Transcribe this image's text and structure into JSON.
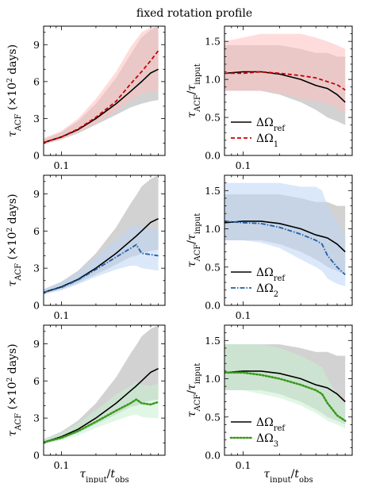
{
  "title": "fixed rotation profile",
  "xlabel_html": "τ_input / t_obs",
  "chart_data": [
    {
      "type": "line",
      "panel": "acf-1",
      "xscale": "log",
      "xlim": [
        0.07,
        0.8
      ],
      "ylim": [
        0,
        10.5
      ],
      "yticks": [
        0,
        3,
        6,
        9
      ],
      "xticks": [
        0.1
      ],
      "ylabel": "τ_ACF (×10² days)",
      "x": [
        0.07,
        0.1,
        0.14,
        0.2,
        0.3,
        0.4,
        0.5,
        0.6,
        0.7
      ],
      "series": [
        {
          "name": "",
          "values": [
            1.05,
            1.5,
            2.1,
            3.0,
            4.2,
            5.2,
            6.0,
            6.7,
            7.0
          ],
          "lower": [
            0.9,
            1.3,
            1.8,
            2.5,
            3.3,
            3.9,
            4.2,
            4.4,
            4.5
          ],
          "upper": [
            1.3,
            1.9,
            2.8,
            4.2,
            6.3,
            8.2,
            9.6,
            10.2,
            10.5
          ],
          "color": "#000000",
          "band": "#bfbfbf"
        },
        {
          "name": "",
          "values": [
            1.05,
            1.5,
            2.15,
            3.1,
            4.4,
            5.8,
            6.8,
            7.7,
            8.5
          ],
          "lower": [
            0.9,
            1.3,
            1.9,
            2.6,
            3.6,
            4.5,
            5.0,
            5.2,
            5.3
          ],
          "upper": [
            1.4,
            2.0,
            3.0,
            4.6,
            6.8,
            8.8,
            10.0,
            10.4,
            10.5
          ],
          "color": "#cc0000",
          "band": "#ffc0c0",
          "dash": "5,3"
        }
      ]
    },
    {
      "type": "line",
      "panel": "ratio-1",
      "xscale": "log",
      "xlim": [
        0.07,
        0.8
      ],
      "ylim": [
        0,
        1.7
      ],
      "yticks": [
        0.0,
        0.5,
        1.0,
        1.5
      ],
      "xticks": [
        0.1
      ],
      "ylabel": "τ_ACF / τ_input",
      "x": [
        0.07,
        0.1,
        0.14,
        0.2,
        0.3,
        0.4,
        0.5,
        0.6,
        0.7
      ],
      "series": [
        {
          "name": "ΔΩ_ref",
          "values": [
            1.08,
            1.1,
            1.1,
            1.07,
            1.0,
            0.92,
            0.88,
            0.8,
            0.7
          ],
          "lower": [
            0.85,
            0.85,
            0.85,
            0.8,
            0.7,
            0.6,
            0.5,
            0.45,
            0.4
          ],
          "upper": [
            1.45,
            1.45,
            1.45,
            1.45,
            1.4,
            1.35,
            1.35,
            1.3,
            1.3
          ],
          "color": "#000000",
          "band": "#bfbfbf"
        },
        {
          "name": "ΔΩ_1",
          "values": [
            1.08,
            1.08,
            1.1,
            1.08,
            1.05,
            1.02,
            0.97,
            0.93,
            0.86
          ],
          "lower": [
            0.85,
            0.85,
            0.85,
            0.82,
            0.75,
            0.72,
            0.68,
            0.62,
            0.55
          ],
          "upper": [
            1.5,
            1.55,
            1.6,
            1.6,
            1.6,
            1.55,
            1.5,
            1.45,
            1.4
          ],
          "color": "#cc0000",
          "band": "#ffc0c0",
          "dash": "5,3"
        }
      ]
    },
    {
      "type": "line",
      "panel": "acf-2",
      "xscale": "log",
      "xlim": [
        0.07,
        0.8
      ],
      "ylim": [
        0,
        10.5
      ],
      "yticks": [
        0,
        3,
        6,
        9
      ],
      "xticks": [
        0.1
      ],
      "ylabel": "τ_ACF (×10² days)",
      "x": [
        0.07,
        0.1,
        0.14,
        0.2,
        0.3,
        0.4,
        0.45,
        0.5,
        0.6,
        0.7
      ],
      "series": [
        {
          "name": "",
          "values": [
            1.05,
            1.5,
            2.1,
            3.0,
            4.2,
            5.2,
            5.6,
            6.0,
            6.7,
            7.0
          ],
          "lower": [
            0.9,
            1.3,
            1.8,
            2.5,
            3.3,
            3.9,
            4.0,
            4.2,
            4.4,
            4.5
          ],
          "upper": [
            1.3,
            1.9,
            2.8,
            4.2,
            6.3,
            8.2,
            8.9,
            9.6,
            10.2,
            10.5
          ],
          "color": "#000000",
          "band": "#bfbfbf"
        },
        {
          "name": "",
          "values": [
            1.05,
            1.45,
            2.05,
            2.9,
            3.9,
            4.6,
            4.9,
            4.2,
            4.1,
            4.0
          ],
          "lower": [
            0.9,
            1.2,
            1.7,
            2.3,
            2.9,
            3.2,
            3.2,
            3.0,
            2.9,
            2.8
          ],
          "upper": [
            1.3,
            1.9,
            2.7,
            3.9,
            5.3,
            6.3,
            6.5,
            6.3,
            6.2,
            6.2
          ],
          "color": "#1f5fa8",
          "band": "#bcd6f5",
          "dash": "6,2,1.5,2"
        }
      ]
    },
    {
      "type": "line",
      "panel": "ratio-2",
      "xscale": "log",
      "xlim": [
        0.07,
        0.8
      ],
      "ylim": [
        0,
        1.7
      ],
      "yticks": [
        0.0,
        0.5,
        1.0,
        1.5
      ],
      "xticks": [
        0.1
      ],
      "ylabel": "τ_ACF / τ_input",
      "x": [
        0.07,
        0.1,
        0.14,
        0.2,
        0.3,
        0.4,
        0.45,
        0.5,
        0.6,
        0.7
      ],
      "series": [
        {
          "name": "ΔΩ_ref",
          "values": [
            1.08,
            1.1,
            1.1,
            1.07,
            1.0,
            0.92,
            0.9,
            0.88,
            0.8,
            0.7
          ],
          "lower": [
            0.85,
            0.85,
            0.85,
            0.8,
            0.7,
            0.6,
            0.55,
            0.5,
            0.45,
            0.4
          ],
          "upper": [
            1.45,
            1.45,
            1.45,
            1.45,
            1.4,
            1.35,
            1.35,
            1.35,
            1.3,
            1.3
          ],
          "color": "#000000",
          "band": "#bfbfbf"
        },
        {
          "name": "ΔΩ_2",
          "values": [
            1.1,
            1.08,
            1.07,
            1.02,
            0.93,
            0.85,
            0.8,
            0.65,
            0.5,
            0.4
          ],
          "lower": [
            0.85,
            0.85,
            0.82,
            0.75,
            0.6,
            0.5,
            0.45,
            0.35,
            0.28,
            0.25
          ],
          "upper": [
            1.6,
            1.6,
            1.6,
            1.6,
            1.55,
            1.55,
            1.5,
            1.3,
            1.1,
            0.9
          ],
          "color": "#1f5fa8",
          "band": "#bcd6f5",
          "dash": "6,2,1.5,2"
        }
      ]
    },
    {
      "type": "line",
      "panel": "acf-3",
      "xscale": "log",
      "xlim": [
        0.07,
        0.8
      ],
      "ylim": [
        0,
        10.5
      ],
      "yticks": [
        0,
        3,
        6,
        9
      ],
      "xticks": [
        0.1
      ],
      "ylabel": "τ_ACF (×10² days)",
      "x": [
        0.07,
        0.1,
        0.14,
        0.2,
        0.3,
        0.4,
        0.45,
        0.5,
        0.6,
        0.7
      ],
      "series": [
        {
          "name": "",
          "values": [
            1.05,
            1.5,
            2.1,
            3.0,
            4.2,
            5.2,
            5.6,
            6.0,
            6.7,
            7.0
          ],
          "lower": [
            0.9,
            1.3,
            1.8,
            2.5,
            3.3,
            3.9,
            4.0,
            4.2,
            4.4,
            4.5
          ],
          "upper": [
            1.3,
            1.9,
            2.8,
            4.2,
            6.3,
            8.2,
            8.9,
            9.6,
            10.2,
            10.5
          ],
          "color": "#000000",
          "band": "#bfbfbf"
        },
        {
          "name": "",
          "values": [
            1.05,
            1.4,
            1.95,
            2.7,
            3.6,
            4.2,
            4.5,
            4.2,
            4.1,
            4.3
          ],
          "lower": [
            0.9,
            1.2,
            1.6,
            2.2,
            2.8,
            3.2,
            3.3,
            3.1,
            3.0,
            3.0
          ],
          "upper": [
            1.3,
            1.8,
            2.6,
            3.6,
            4.9,
            5.6,
            5.9,
            5.7,
            5.6,
            5.8
          ],
          "color": "#3a9a1a",
          "band": "#c8f0d2",
          "dash": "1.5,2.5"
        }
      ]
    },
    {
      "type": "line",
      "panel": "ratio-3",
      "xscale": "log",
      "xlim": [
        0.07,
        0.8
      ],
      "ylim": [
        0,
        1.7
      ],
      "yticks": [
        0.0,
        0.5,
        1.0,
        1.5
      ],
      "xticks": [
        0.1
      ],
      "ylabel": "τ_ACF / τ_input",
      "x": [
        0.07,
        0.1,
        0.14,
        0.2,
        0.3,
        0.4,
        0.45,
        0.5,
        0.6,
        0.7
      ],
      "series": [
        {
          "name": "ΔΩ_ref",
          "values": [
            1.08,
            1.1,
            1.1,
            1.07,
            1.0,
            0.92,
            0.9,
            0.88,
            0.8,
            0.7
          ],
          "lower": [
            0.85,
            0.85,
            0.85,
            0.8,
            0.7,
            0.6,
            0.55,
            0.5,
            0.45,
            0.4
          ],
          "upper": [
            1.45,
            1.45,
            1.45,
            1.45,
            1.4,
            1.35,
            1.35,
            1.35,
            1.3,
            1.3
          ],
          "color": "#000000",
          "band": "#bfbfbf"
        },
        {
          "name": "ΔΩ_3",
          "values": [
            1.08,
            1.08,
            1.05,
            1.0,
            0.92,
            0.85,
            0.8,
            0.68,
            0.52,
            0.45
          ],
          "lower": [
            0.85,
            0.85,
            0.8,
            0.75,
            0.65,
            0.55,
            0.5,
            0.45,
            0.4,
            0.35
          ],
          "upper": [
            1.45,
            1.45,
            1.45,
            1.4,
            1.3,
            1.2,
            1.15,
            1.0,
            0.8,
            0.65
          ],
          "color": "#3a9a1a",
          "band": "#c8f0d2",
          "dash": "1.5,2.5"
        }
      ]
    }
  ]
}
